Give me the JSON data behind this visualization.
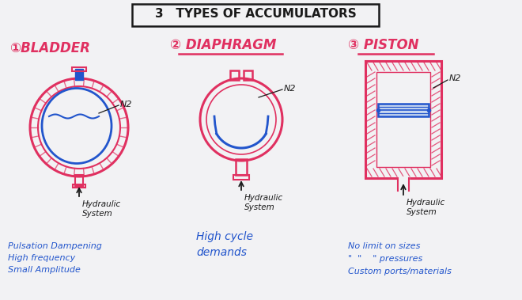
{
  "title": "3   Types of Accumulators",
  "bg_color": "#f2f2f4",
  "red_color": "#e03060",
  "blue_color": "#2255cc",
  "dark_color": "#1a1a1a",
  "section1_label": "①BLADDER",
  "section2_label": "② DIAPHRAGM",
  "section3_label": "③ PISTON",
  "section1_notes": [
    "Pulsation Dampening",
    "High frequency",
    "Small Amplitude"
  ],
  "section2_notes": [
    "High cycle",
    "demands"
  ],
  "section3_notes": [
    "No limit on sizes",
    "\"  \"    \" pressures",
    "Custom ports/materials"
  ],
  "n2_label": "N2",
  "hydraulic_label": "Hydraulic\nSystem"
}
